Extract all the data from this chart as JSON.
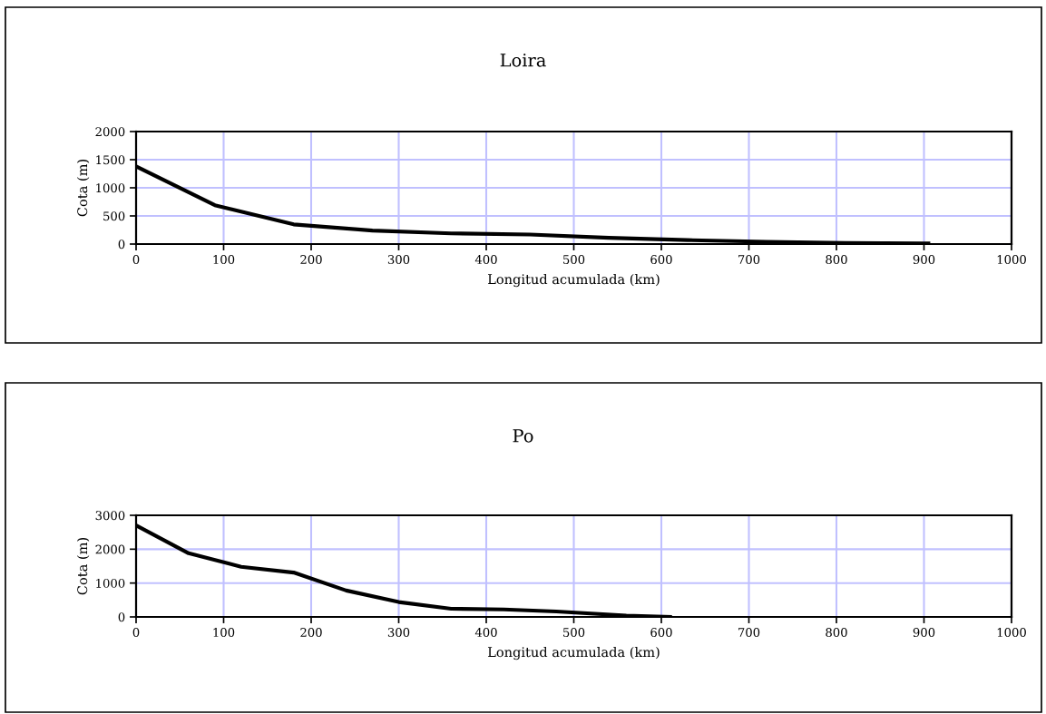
{
  "chart_data": [
    {
      "type": "line",
      "title": "Loira",
      "xlabel": "Longitud acumulada (km)",
      "ylabel": "Cota (m)",
      "x": [
        0,
        90,
        180,
        270,
        360,
        450,
        540,
        630,
        720,
        810,
        905
      ],
      "series": [
        {
          "color": "#000000",
          "values": [
            1380,
            690,
            350,
            240,
            190,
            170,
            110,
            70,
            40,
            20,
            10
          ]
        }
      ],
      "xlim": [
        0,
        1000
      ],
      "xticks": [
        0,
        100,
        200,
        300,
        400,
        500,
        600,
        700,
        800,
        900,
        1000
      ],
      "ylim": [
        0,
        2000
      ],
      "yticks": [
        0,
        500,
        1000,
        1500,
        2000
      ],
      "grid": true,
      "legend": false,
      "marker": "none",
      "line_style": "solid"
    },
    {
      "type": "line",
      "title": "Po",
      "xlabel": "Longitud acumulada (km)",
      "ylabel": "Cota (m)",
      "x": [
        0,
        60,
        120,
        180,
        240,
        300,
        360,
        420,
        480,
        560,
        610
      ],
      "series": [
        {
          "color": "#000000",
          "values": [
            2700,
            1880,
            1480,
            1310,
            780,
            440,
            240,
            220,
            160,
            40,
            0
          ]
        }
      ],
      "xlim": [
        0,
        1000
      ],
      "xticks": [
        0,
        100,
        200,
        300,
        400,
        500,
        600,
        700,
        800,
        900,
        1000
      ],
      "ylim": [
        0,
        3000
      ],
      "yticks": [
        0,
        1000,
        2000,
        3000
      ],
      "grid": true,
      "legend": false,
      "marker": "none",
      "line_style": "solid"
    }
  ]
}
